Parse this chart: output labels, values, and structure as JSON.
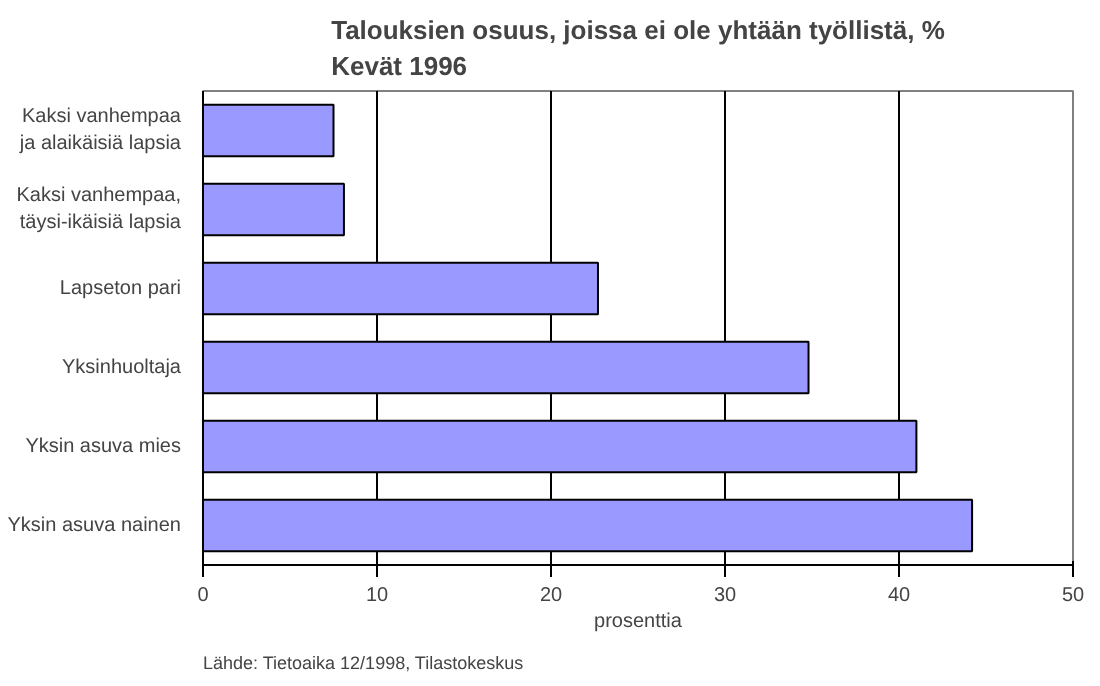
{
  "chart_data": {
    "type": "bar",
    "orientation": "horizontal",
    "title": "Talouksien osuus, joissa ei ole yhtään työllistä, %\nKevät 1996",
    "xlabel": "prosenttia",
    "categories": [
      "Kaksi vanhempaa\nja alaikäisiä lapsia",
      "Kaksi vanhempaa,\ntäysi-ikäisiä lapsia",
      "Lapseton pari",
      "Yksinhuoltaja",
      "Yksin asuva mies",
      "Yksin asuva nainen"
    ],
    "values": [
      7.5,
      8.1,
      22.7,
      34.8,
      41.0,
      44.2
    ],
    "color": "#9999ff",
    "xlim": [
      0,
      50
    ],
    "xticks": [
      0,
      10,
      20,
      30,
      40,
      50
    ],
    "grid": "x",
    "annotations": [
      "Lähde: Tietoaika 12/1998, Tilastokeskus"
    ]
  }
}
